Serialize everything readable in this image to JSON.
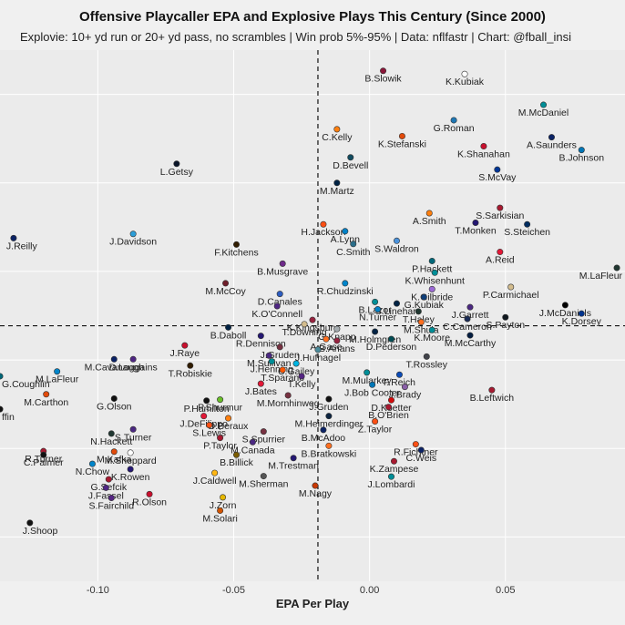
{
  "chart_data": {
    "type": "scatter",
    "title": "Offensive Playcaller EPA and Explosive Plays This Century (Since 2000)",
    "subtitle": "Explovie: 10+ yd run or 20+ yd pass, no scrambles | Win prob 5%-95% | Data: nflfastr | Chart: @fball_insi",
    "xlabel": "EPA Per Play",
    "ylabel": "",
    "x_ticks": [
      "-0.10",
      "-0.05",
      "0.00",
      "0.05"
    ],
    "x_tick_values": [
      -0.1,
      -0.05,
      0.0,
      0.05
    ],
    "xlim": [
      -0.136,
      0.094
    ],
    "ylim": [
      0,
      1
    ],
    "grid": true,
    "legend": "none",
    "reference_lines": {
      "x": -0.019,
      "y": 0.481
    },
    "points": [
      {
        "label": "K.Kubiak",
        "x": 0.035,
        "y": 0.955,
        "color": "#ffffff"
      },
      {
        "label": "B.Slowik",
        "x": 0.005,
        "y": 0.961,
        "color": "#8a1538"
      },
      {
        "label": "M.McDaniel",
        "x": 0.064,
        "y": 0.897,
        "color": "#008e97"
      },
      {
        "label": "C.Kelly",
        "x": -0.012,
        "y": 0.851,
        "color": "#ff7f0e"
      },
      {
        "label": "G.Roman",
        "x": 0.031,
        "y": 0.868,
        "color": "#1f77b4"
      },
      {
        "label": "A.Saunders",
        "x": 0.067,
        "y": 0.836,
        "color": "#0b2265"
      },
      {
        "label": "K.Stefanski",
        "x": 0.012,
        "y": 0.838,
        "color": "#e14a0a"
      },
      {
        "label": "K.Shanahan",
        "x": 0.042,
        "y": 0.819,
        "color": "#c8102e"
      },
      {
        "label": "B.Johnson",
        "x": 0.078,
        "y": 0.812,
        "color": "#0076b6"
      },
      {
        "label": "D.Bevell",
        "x": -0.007,
        "y": 0.798,
        "color": "#114b5f"
      },
      {
        "label": "L.Getsy",
        "x": -0.071,
        "y": 0.786,
        "color": "#0b162a"
      },
      {
        "label": "S.McVay",
        "x": 0.047,
        "y": 0.775,
        "color": "#003594"
      },
      {
        "label": "M.Martz",
        "x": -0.012,
        "y": 0.75,
        "color": "#002244"
      },
      {
        "label": "S.Sarkisian",
        "x": 0.048,
        "y": 0.703,
        "color": "#a71930"
      },
      {
        "label": "A.Smith",
        "x": 0.022,
        "y": 0.693,
        "color": "#ff7f0e"
      },
      {
        "label": "H.Jackson",
        "x": -0.017,
        "y": 0.672,
        "color": "#fb4f14"
      },
      {
        "label": "T.Monken",
        "x": 0.039,
        "y": 0.675,
        "color": "#241773"
      },
      {
        "label": "S.Steichen",
        "x": 0.058,
        "y": 0.672,
        "color": "#002c5f"
      },
      {
        "label": "J.Reilly",
        "x": -0.131,
        "y": 0.646,
        "color": "#0b2265"
      },
      {
        "label": "J.Davidson",
        "x": -0.087,
        "y": 0.654,
        "color": "#2c9ed8"
      },
      {
        "label": "A.Lynn",
        "x": -0.009,
        "y": 0.659,
        "color": "#0080c6"
      },
      {
        "label": "F.Kitchens",
        "x": -0.049,
        "y": 0.634,
        "color": "#311d00"
      },
      {
        "label": "S.Waldron",
        "x": 0.01,
        "y": 0.641,
        "color": "#4b92db"
      },
      {
        "label": "C.Smith",
        "x": -0.006,
        "y": 0.635,
        "color": "#2b6e8a"
      },
      {
        "label": "A.Reid",
        "x": 0.048,
        "y": 0.62,
        "color": "#e31837"
      },
      {
        "label": "B.Musgrave",
        "x": -0.032,
        "y": 0.598,
        "color": "#6e2a8a"
      },
      {
        "label": "P.Hackett",
        "x": 0.023,
        "y": 0.603,
        "color": "#006778"
      },
      {
        "label": "M.LaFleur",
        "x": 0.091,
        "y": 0.59,
        "color": "#203731"
      },
      {
        "label": "M.McCoy",
        "x": -0.053,
        "y": 0.561,
        "color": "#6e1d2a"
      },
      {
        "label": "K.Whisenhunt",
        "x": 0.024,
        "y": 0.581,
        "color": "#008e97"
      },
      {
        "label": "R.Chudzinski",
        "x": -0.009,
        "y": 0.561,
        "color": "#0085ca"
      },
      {
        "label": "P.Carmichael",
        "x": 0.052,
        "y": 0.554,
        "color": "#d3bc8d"
      },
      {
        "label": "K.Gilbride",
        "x": 0.023,
        "y": 0.55,
        "color": "#9c6ad6"
      },
      {
        "label": "G.Kubiak",
        "x": 0.02,
        "y": 0.535,
        "color": "#0e3f7a"
      },
      {
        "label": "D.Canales",
        "x": -0.033,
        "y": 0.541,
        "color": "#2d5dc0"
      },
      {
        "label": "S.Linehan",
        "x": 0.01,
        "y": 0.523,
        "color": "#002244"
      },
      {
        "label": "B.Lazor",
        "x": 0.002,
        "y": 0.526,
        "color": "#008e97"
      },
      {
        "label": "J.McDaniels",
        "x": 0.072,
        "y": 0.52,
        "color": "#000000"
      },
      {
        "label": "K.O'Connell",
        "x": -0.034,
        "y": 0.518,
        "color": "#4f2683"
      },
      {
        "label": "N.Turner",
        "x": 0.003,
        "y": 0.512,
        "color": "#0080c6"
      },
      {
        "label": "T.Haley",
        "x": 0.018,
        "y": 0.508,
        "color": "#203731"
      },
      {
        "label": "J.Garrett",
        "x": 0.037,
        "y": 0.516,
        "color": "#4b2882"
      },
      {
        "label": "K.Dorsey",
        "x": 0.078,
        "y": 0.504,
        "color": "#00338d"
      },
      {
        "label": "K.Kingsbury",
        "x": -0.021,
        "y": 0.492,
        "color": "#97233f"
      },
      {
        "label": "M.Shula",
        "x": 0.019,
        "y": 0.488,
        "color": "#ff6f20"
      },
      {
        "label": "C.Cameron",
        "x": 0.036,
        "y": 0.494,
        "color": "#1a2b55"
      },
      {
        "label": "S.Payton",
        "x": 0.05,
        "y": 0.497,
        "color": "#101820"
      },
      {
        "label": "B.Daboll",
        "x": -0.052,
        "y": 0.478,
        "color": "#002244"
      },
      {
        "label": "T.Downing",
        "x": -0.024,
        "y": 0.484,
        "color": "#d3bc8d"
      },
      {
        "label": "G.Knapp",
        "x": -0.012,
        "y": 0.475,
        "color": "#a5acaf"
      },
      {
        "label": "M.Holmgren",
        "x": 0.002,
        "y": 0.47,
        "color": "#002244"
      },
      {
        "label": "K.Moore",
        "x": 0.023,
        "y": 0.473,
        "color": "#008e97"
      },
      {
        "label": "R.Dennison",
        "x": -0.04,
        "y": 0.462,
        "color": "#241773"
      },
      {
        "label": "A.Gase",
        "x": -0.016,
        "y": 0.456,
        "color": "#ff6f20"
      },
      {
        "label": "B.Arians",
        "x": -0.012,
        "y": 0.453,
        "color": "#97233f"
      },
      {
        "label": "D.Pederson",
        "x": 0.008,
        "y": 0.456,
        "color": "#004c54"
      },
      {
        "label": "M.McCarthy",
        "x": 0.037,
        "y": 0.463,
        "color": "#041e42"
      },
      {
        "label": "J.Raye",
        "x": -0.068,
        "y": 0.444,
        "color": "#c8102e"
      },
      {
        "label": "J.Gruden",
        "x": -0.033,
        "y": 0.441,
        "color": "#773141"
      },
      {
        "label": "J.Hufnagel",
        "x": -0.019,
        "y": 0.436,
        "color": "#4b8b9b"
      },
      {
        "label": "M.Cavanaugh",
        "x": -0.094,
        "y": 0.418,
        "color": "#0b2265"
      },
      {
        "label": "D.Loggains",
        "x": -0.087,
        "y": 0.418,
        "color": "#4f2683"
      },
      {
        "label": "M.Sullivan",
        "x": -0.037,
        "y": 0.425,
        "color": "#4b2882"
      },
      {
        "label": "J.Henning",
        "x": -0.036,
        "y": 0.414,
        "color": "#008e97"
      },
      {
        "label": "T.Rossley",
        "x": 0.021,
        "y": 0.423,
        "color": "#41434a"
      },
      {
        "label": "G.Coughlin",
        "x": -0.136,
        "y": 0.386,
        "color": "#006778"
      },
      {
        "label": "M.LaFleur",
        "x": -0.115,
        "y": 0.395,
        "color": "#0085ca"
      },
      {
        "label": "T.Robiskie",
        "x": -0.066,
        "y": 0.406,
        "color": "#311d00"
      },
      {
        "label": "C.Gailey",
        "x": -0.027,
        "y": 0.41,
        "color": "#00b5e2"
      },
      {
        "label": "T.Sparano",
        "x": -0.032,
        "y": 0.398,
        "color": "#ff5500"
      },
      {
        "label": "M.Mularkey",
        "x": -0.001,
        "y": 0.393,
        "color": "#008e97"
      },
      {
        "label": "F.Reich",
        "x": 0.011,
        "y": 0.389,
        "color": "#0b4bb7"
      },
      {
        "label": "T.Kelly",
        "x": -0.025,
        "y": 0.386,
        "color": "#552583"
      },
      {
        "label": "J.Bates",
        "x": -0.04,
        "y": 0.372,
        "color": "#e31837"
      },
      {
        "label": "J.Bob Cooter",
        "x": 0.001,
        "y": 0.37,
        "color": "#0076b6"
      },
      {
        "label": "J.Brady",
        "x": 0.013,
        "y": 0.366,
        "color": "#8a5fa8"
      },
      {
        "label": "G.Olson",
        "x": -0.094,
        "y": 0.344,
        "color": "#111111"
      },
      {
        "label": "P.Hamilton",
        "x": -0.06,
        "y": 0.34,
        "color": "#111111"
      },
      {
        "label": "M.Mornhinweg",
        "x": -0.03,
        "y": 0.35,
        "color": "#773141"
      },
      {
        "label": "B.Leftwich",
        "x": 0.045,
        "y": 0.36,
        "color": "#a71930"
      },
      {
        "label": "M.Carthon",
        "x": -0.119,
        "y": 0.352,
        "color": "#e14a0a"
      },
      {
        "label": "P.Shurmur",
        "x": -0.055,
        "y": 0.342,
        "color": "#69be28"
      },
      {
        "label": "J.Gruden",
        "x": -0.015,
        "y": 0.343,
        "color": "#111111"
      },
      {
        "label": "D.Koetter",
        "x": 0.008,
        "y": 0.341,
        "color": "#d50a0a"
      },
      {
        "label": "B.O'Brien",
        "x": 0.007,
        "y": 0.328,
        "color": "#a71930"
      },
      {
        "label": "J.DeFilippo",
        "x": -0.061,
        "y": 0.311,
        "color": "#e31837"
      },
      {
        "label": "D.Beraux",
        "x": -0.052,
        "y": 0.307,
        "color": "#ff7f0e"
      },
      {
        "label": "M.Heimerdinger",
        "x": -0.015,
        "y": 0.311,
        "color": "#0c2340"
      },
      {
        "label": "Z.Taylor",
        "x": 0.002,
        "y": 0.301,
        "color": "#fb4f14"
      },
      {
        "label": "S.Lewis",
        "x": -0.059,
        "y": 0.294,
        "color": "#fb4f14"
      },
      {
        "label": "S.Turner",
        "x": -0.087,
        "y": 0.286,
        "color": "#4b2882"
      },
      {
        "label": "N.Hackett",
        "x": -0.095,
        "y": 0.278,
        "color": "#203731"
      },
      {
        "label": "S.Spurrier",
        "x": -0.039,
        "y": 0.282,
        "color": "#773141"
      },
      {
        "label": "B.McAdoo",
        "x": -0.017,
        "y": 0.285,
        "color": "#0b2265"
      },
      {
        "label": "P.Taylor",
        "x": -0.055,
        "y": 0.27,
        "color": "#a71930"
      },
      {
        "label": "M.Canada",
        "x": -0.043,
        "y": 0.262,
        "color": "#4b2882"
      },
      {
        "label": "R.Fichtner",
        "x": 0.017,
        "y": 0.258,
        "color": "#fb4f14"
      },
      {
        "label": "R.Turner",
        "x": -0.12,
        "y": 0.245,
        "color": "#a71930"
      },
      {
        "label": "M.Kafka",
        "x": -0.094,
        "y": 0.244,
        "color": "#e14a0a"
      },
      {
        "label": "M.Sheppard",
        "x": -0.088,
        "y": 0.242,
        "color": "#ffffff"
      },
      {
        "label": "C.Palmer",
        "x": -0.12,
        "y": 0.238,
        "color": "#111111"
      },
      {
        "label": "B.Bratkowski",
        "x": -0.015,
        "y": 0.255,
        "color": "#ff6f20"
      },
      {
        "label": "C.Weis",
        "x": 0.019,
        "y": 0.247,
        "color": "#0b2265"
      },
      {
        "label": "B.Billick",
        "x": -0.049,
        "y": 0.238,
        "color": "#7a5c00"
      },
      {
        "label": "N.Chow",
        "x": -0.102,
        "y": 0.221,
        "color": "#0085ca"
      },
      {
        "label": "M.Trestman",
        "x": -0.028,
        "y": 0.232,
        "color": "#241773"
      },
      {
        "label": "K.Zampese",
        "x": 0.009,
        "y": 0.226,
        "color": "#a71930"
      },
      {
        "label": "K.Rowen",
        "x": -0.088,
        "y": 0.211,
        "color": "#241773"
      },
      {
        "label": "J.Caldwell",
        "x": -0.057,
        "y": 0.204,
        "color": "#ffb612"
      },
      {
        "label": "G.Sefcik",
        "x": -0.096,
        "y": 0.192,
        "color": "#a71930"
      },
      {
        "label": "M.Sherman",
        "x": -0.039,
        "y": 0.198,
        "color": "#555555"
      },
      {
        "label": "J.Lombardi",
        "x": 0.008,
        "y": 0.197,
        "color": "#008e97"
      },
      {
        "label": "J.Fassel",
        "x": -0.097,
        "y": 0.176,
        "color": "#4f2683"
      },
      {
        "label": "M.Nagy",
        "x": -0.02,
        "y": 0.18,
        "color": "#c83803"
      },
      {
        "label": "R.Olson",
        "x": -0.081,
        "y": 0.164,
        "color": "#c8102e"
      },
      {
        "label": "S.Fairchild",
        "x": -0.095,
        "y": 0.157,
        "color": "#552583"
      },
      {
        "label": "J.Zorn",
        "x": -0.054,
        "y": 0.158,
        "color": "#e6b800"
      },
      {
        "label": "M.Solari",
        "x": -0.055,
        "y": 0.133,
        "color": "#d35400"
      },
      {
        "label": "J.Shoop",
        "x": -0.125,
        "y": 0.11,
        "color": "#111111"
      },
      {
        "label": "ffin",
        "x": -0.136,
        "y": 0.324,
        "color": "#111111"
      }
    ]
  }
}
